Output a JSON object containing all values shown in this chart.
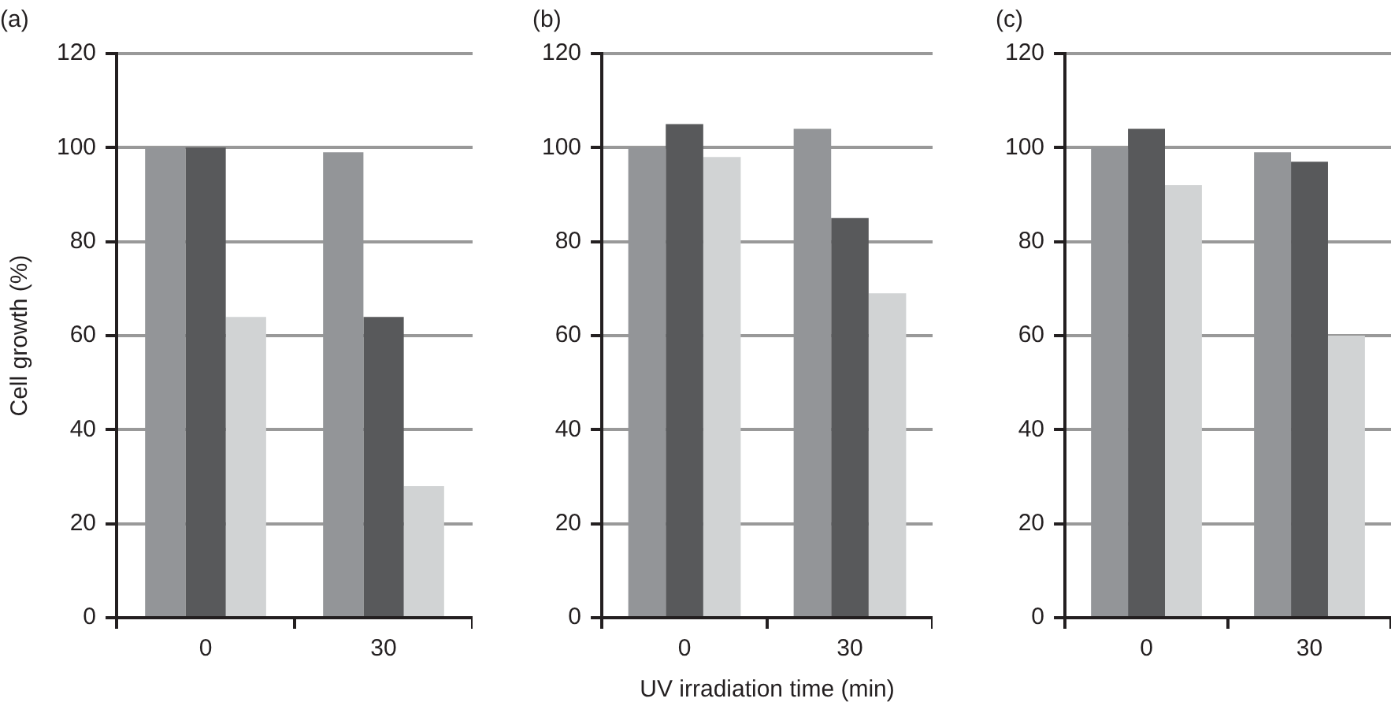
{
  "chart_data": [
    {
      "type": "bar",
      "title": "(a)",
      "ylabel": "Cell growth (%)",
      "categories": [
        "0",
        "30"
      ],
      "series": [
        {
          "color": "#939598",
          "values": [
            100,
            99
          ]
        },
        {
          "color": "#58595b",
          "values": [
            100,
            64
          ]
        },
        {
          "color": "#d1d3d4",
          "values": [
            64,
            28
          ]
        }
      ],
      "ylim": [
        0,
        120
      ],
      "yticks": [
        0,
        20,
        40,
        60,
        80,
        100,
        120
      ],
      "grid": "y"
    },
    {
      "type": "bar",
      "title": "(b)",
      "xlabel": "UV irradiation time (min)",
      "categories": [
        "0",
        "30"
      ],
      "series": [
        {
          "color": "#939598",
          "values": [
            100,
            104
          ]
        },
        {
          "color": "#58595b",
          "values": [
            105,
            85
          ]
        },
        {
          "color": "#d1d3d4",
          "values": [
            98,
            69
          ]
        }
      ],
      "ylim": [
        0,
        120
      ],
      "yticks": [
        0,
        20,
        40,
        60,
        80,
        100,
        120
      ],
      "grid": "y"
    },
    {
      "type": "bar",
      "title": "(c)",
      "categories": [
        "0",
        "30"
      ],
      "series": [
        {
          "color": "#939598",
          "values": [
            100,
            99
          ]
        },
        {
          "color": "#58595b",
          "values": [
            104,
            97
          ]
        },
        {
          "color": "#d1d3d4",
          "values": [
            92,
            60
          ]
        }
      ],
      "ylim": [
        0,
        120
      ],
      "yticks": [
        0,
        20,
        40,
        60,
        80,
        100,
        120
      ],
      "grid": "y"
    }
  ]
}
